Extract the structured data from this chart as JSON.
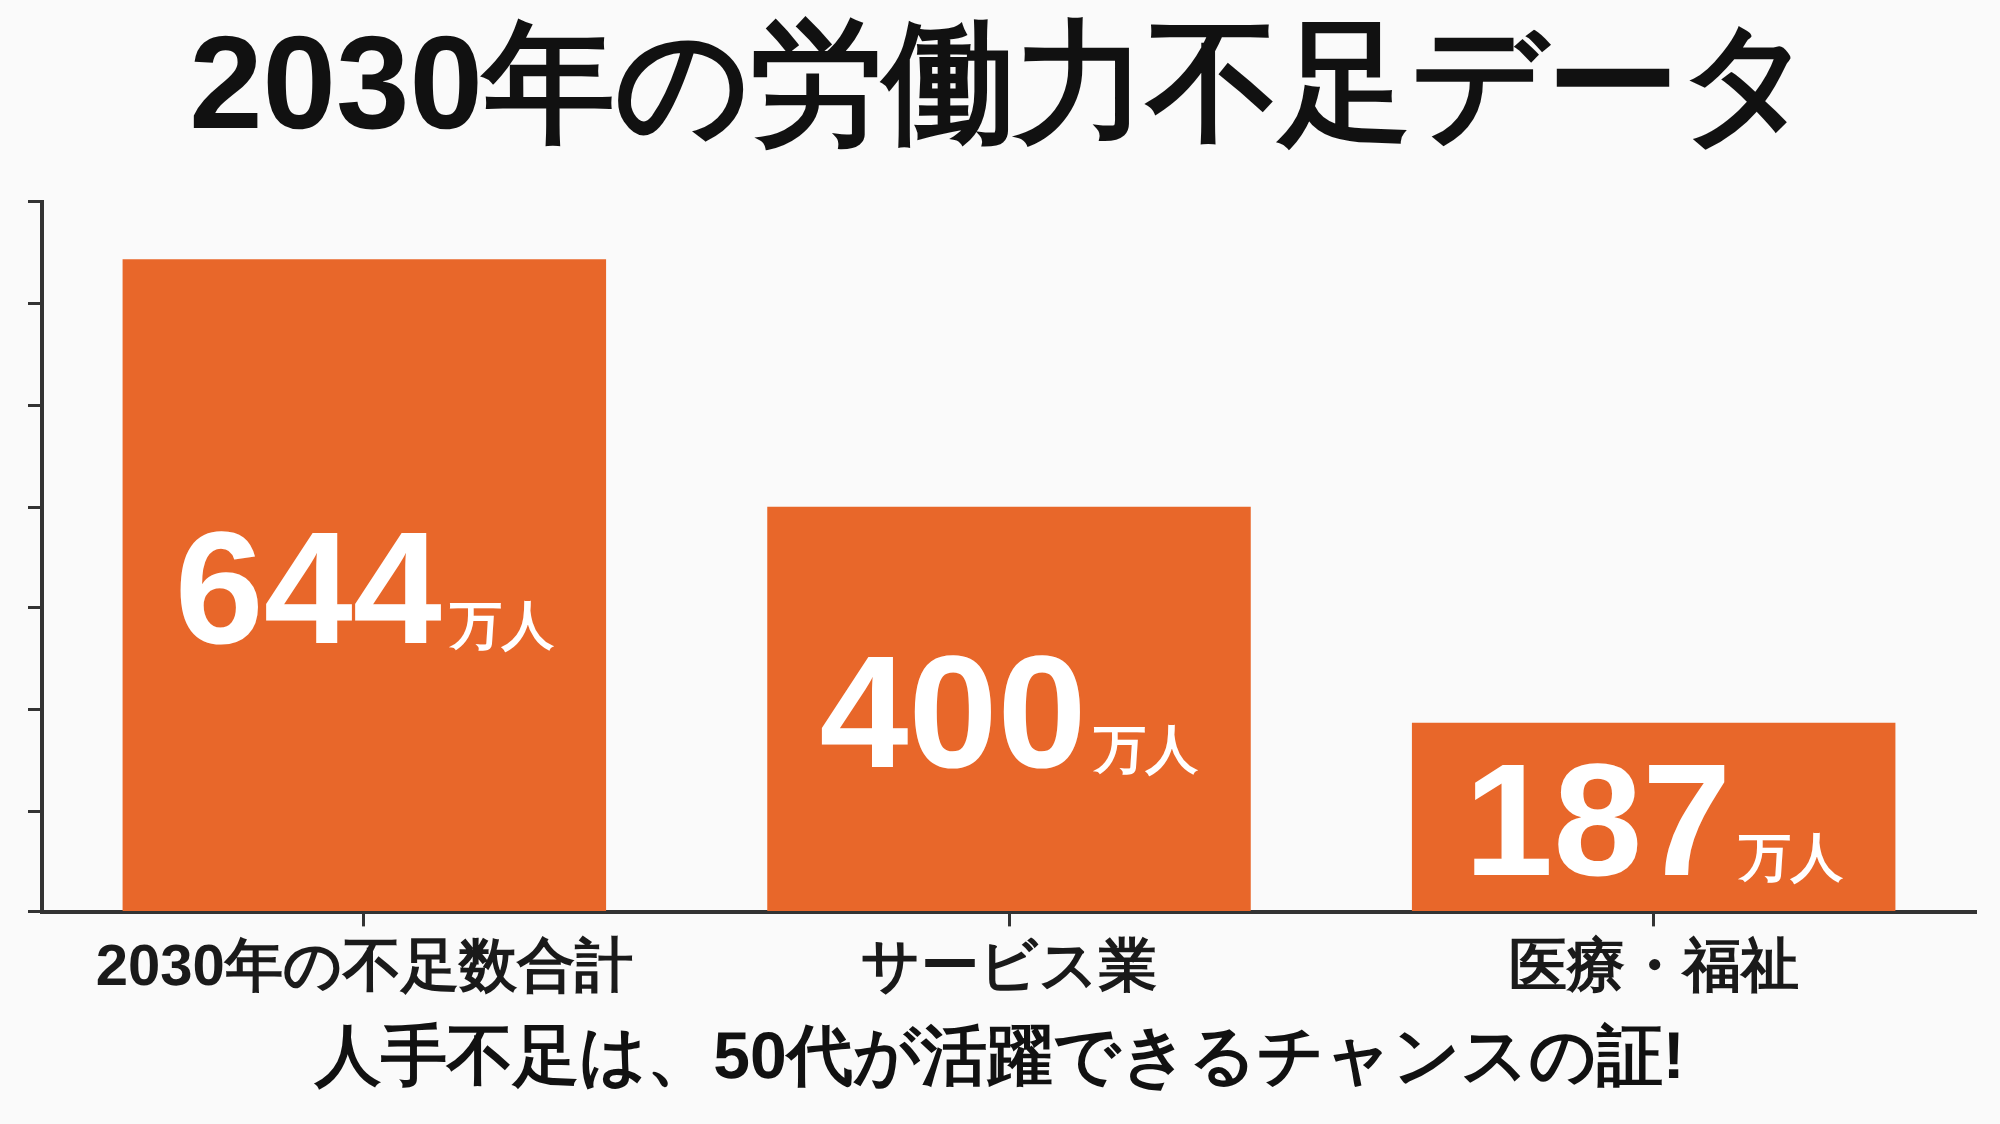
{
  "chart_data": {
    "type": "bar",
    "title": "2030年の労働力不足データ",
    "categories": [
      "2030年の不足数合計",
      "サービス業",
      "医療・福祉"
    ],
    "values": [
      644,
      400,
      187
    ],
    "color": "#e8672a",
    "value_labels": [
      "644万人",
      "400万人",
      "187万人"
    ],
    "tick_labels": "x",
    "annotations": [
      "人手不足は、50代が活躍できるチャンスの証!"
    ]
  }
}
